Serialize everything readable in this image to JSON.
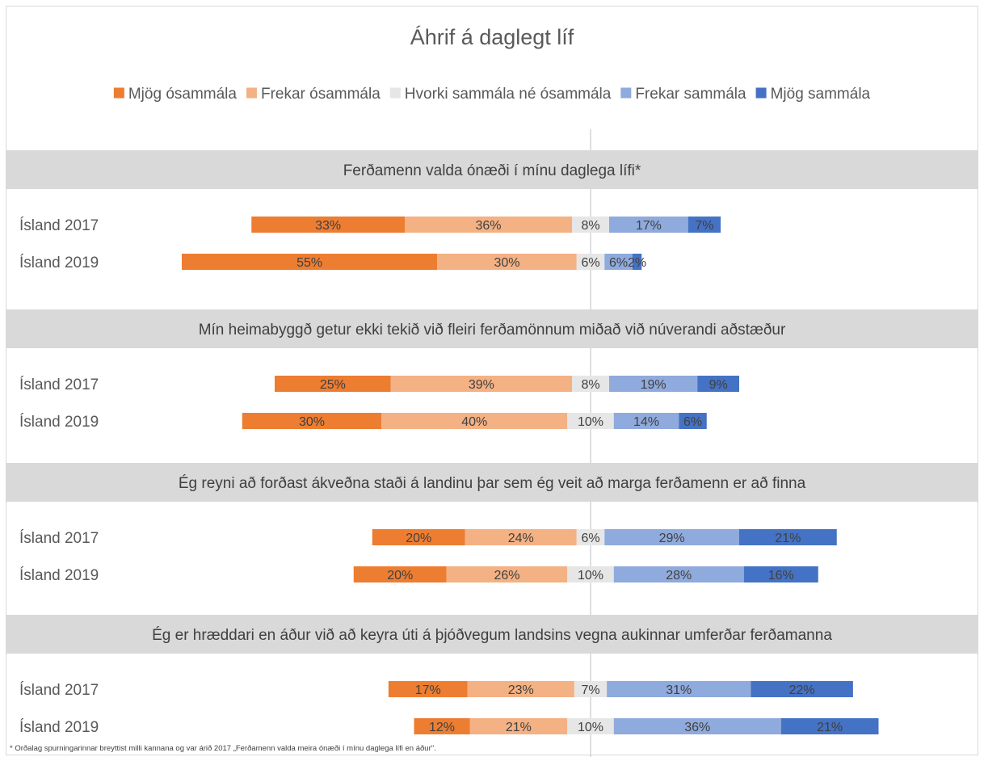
{
  "chart_data": {
    "type": "bar",
    "orientation": "horizontal",
    "stacked": "diverging",
    "title": "Áhrif á daglegt líf",
    "legend_position": "top",
    "legend": [
      {
        "name": "Mjög ósammála",
        "color": "#ED7D31"
      },
      {
        "name": "Frekar ósammála",
        "color": "#F4B183"
      },
      {
        "name": "Hvorki sammála né ósammála",
        "color": "#E7E6E6"
      },
      {
        "name": "Frekar sammála",
        "color": "#8FAADC"
      },
      {
        "name": "Mjög sammála",
        "color": "#4472C4"
      }
    ],
    "panels": [
      {
        "question": "Ferðamenn valda ónæði í mínu daglega lífi*",
        "rows": [
          {
            "label": "Ísland 2017",
            "values": [
              33,
              36,
              8,
              17,
              7
            ],
            "labels": [
              "33%",
              "36%",
              "8%",
              "17%",
              "7%"
            ]
          },
          {
            "label": "Ísland 2019",
            "values": [
              55,
              30,
              6,
              6,
              2
            ],
            "labels": [
              "55%",
              "30%",
              "6%",
              "6%",
              "2%"
            ]
          }
        ]
      },
      {
        "question": "Mín heimabyggð getur ekki tekið við fleiri ferðamönnum miðað við núverandi aðstæður",
        "rows": [
          {
            "label": "Ísland 2017",
            "values": [
              25,
              39,
              8,
              19,
              9
            ],
            "labels": [
              "25%",
              "39%",
              "8%",
              "19%",
              "9%"
            ]
          },
          {
            "label": "Ísland 2019",
            "values": [
              30,
              40,
              10,
              14,
              6
            ],
            "labels": [
              "30%",
              "40%",
              "10%",
              "14%",
              "6%"
            ]
          }
        ]
      },
      {
        "question": "Ég reyni að forðast ákveðna staði á landinu þar sem ég veit að marga ferðamenn er að finna",
        "rows": [
          {
            "label": "Ísland 2017",
            "values": [
              20,
              24,
              6,
              29,
              21
            ],
            "labels": [
              "20%",
              "24%",
              "6%",
              "29%",
              "21%"
            ]
          },
          {
            "label": "Ísland 2019",
            "values": [
              20,
              26,
              10,
              28,
              16
            ],
            "labels": [
              "20%",
              "26%",
              "10%",
              "28%",
              "16%"
            ]
          }
        ]
      },
      {
        "question": "Ég er hræddari en áður við að keyra úti á þjóðvegum landsins vegna aukinnar umferðar ferðamanna",
        "rows": [
          {
            "label": "Ísland 2017",
            "values": [
              17,
              23,
              7,
              31,
              22
            ],
            "labels": [
              "17%",
              "23%",
              "7%",
              "31%",
              "22%"
            ]
          },
          {
            "label": "Ísland 2019",
            "values": [
              12,
              21,
              10,
              36,
              21
            ],
            "labels": [
              "12%",
              "21%",
              "10%",
              "36%",
              "21%"
            ]
          }
        ]
      }
    ],
    "footnote": "* Orðalag spurningarinnar breyttist milli kannana og var árið 2017 „Ferðamenn valda meira ónæði í mínu daglega lífi en áður\"."
  }
}
